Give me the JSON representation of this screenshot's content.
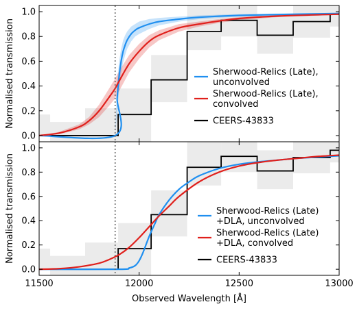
{
  "chart_data": [
    {
      "type": "line",
      "panel": "top",
      "ylabel": "Normalised transmission",
      "xlim": [
        11500,
        13000
      ],
      "ylim": [
        -0.05,
        1.05
      ],
      "xticks": [
        11500,
        12000,
        12500,
        13000
      ],
      "yticks": [
        0.0,
        0.2,
        0.4,
        0.6,
        0.8,
        1.0
      ],
      "ytick_labels": [
        "0.0",
        "0.2",
        "0.4",
        "0.6",
        "0.8",
        "1.0"
      ],
      "vline_x": 11880,
      "legend_position": "lower-right",
      "series": [
        {
          "name": "Sherwood-Relics (Late), unconvolved",
          "legend_lines": [
            "Sherwood-Relics (Late),",
            "unconvolved"
          ],
          "color": "#1f8ff0",
          "x": [
            11500,
            11880,
            11890,
            11900,
            11910,
            11920,
            11930,
            11940,
            11960,
            11980,
            12000,
            12050,
            12100,
            12200,
            12300,
            12500,
            12800,
            13000
          ],
          "y": [
            0.0,
            0.0,
            0.3,
            0.48,
            0.6,
            0.68,
            0.73,
            0.77,
            0.82,
            0.85,
            0.87,
            0.9,
            0.92,
            0.94,
            0.955,
            0.97,
            0.98,
            0.985
          ],
          "band_width": [
            0.0,
            0.0,
            0.12,
            0.12,
            0.1,
            0.09,
            0.08,
            0.07,
            0.06,
            0.05,
            0.05,
            0.04,
            0.03,
            0.02,
            0.015,
            0.01,
            0.008,
            0.005
          ]
        },
        {
          "name": "Sherwood-Relics (Late), convolved",
          "legend_lines": [
            "Sherwood-Relics (Late),",
            "convolved"
          ],
          "color": "#e0201c",
          "x": [
            11500,
            11600,
            11700,
            11750,
            11800,
            11850,
            11880,
            11900,
            11950,
            12000,
            12050,
            12100,
            12200,
            12300,
            12400,
            12500,
            12700,
            13000
          ],
          "y": [
            0.0,
            0.02,
            0.07,
            0.12,
            0.2,
            0.31,
            0.38,
            0.44,
            0.58,
            0.68,
            0.76,
            0.81,
            0.87,
            0.9,
            0.925,
            0.945,
            0.965,
            0.98
          ],
          "band_width": [
            0.0,
            0.01,
            0.02,
            0.03,
            0.05,
            0.07,
            0.08,
            0.08,
            0.07,
            0.06,
            0.05,
            0.04,
            0.03,
            0.02,
            0.015,
            0.012,
            0.008,
            0.005
          ]
        },
        {
          "name": "CEERS-43833",
          "legend_lines": [
            "CEERS-43833"
          ],
          "color": "#000000",
          "step": true,
          "bin_edges": [
            11500,
            11555,
            11730,
            11895,
            12060,
            12240,
            12410,
            12590,
            12770,
            12955,
            13000
          ],
          "values": [
            0.0,
            0.0,
            0.0,
            0.17,
            0.45,
            0.84,
            0.93,
            0.81,
            0.92,
            0.98
          ],
          "err_low": [
            0.0,
            -0.05,
            -0.05,
            -0.05,
            0.27,
            0.69,
            0.8,
            0.66,
            0.79,
            0.88
          ],
          "err_high": [
            0.17,
            0.11,
            0.22,
            0.38,
            0.65,
            1.05,
            1.05,
            0.98,
            1.05,
            1.05
          ]
        }
      ]
    },
    {
      "type": "line",
      "panel": "bottom",
      "ylabel": "Normalised transmission",
      "xlabel": "Observed Wavelength [Å]",
      "xlim": [
        11500,
        13000
      ],
      "ylim": [
        -0.05,
        1.05
      ],
      "xticks": [
        11500,
        12000,
        12500,
        13000
      ],
      "xtick_labels": [
        "11500",
        "12000",
        "12500",
        "13000"
      ],
      "yticks": [
        0.0,
        0.2,
        0.4,
        0.6,
        0.8,
        1.0
      ],
      "ytick_labels": [
        "0.0",
        "0.2",
        "0.4",
        "0.6",
        "0.8",
        "1.0"
      ],
      "vline_x": 11880,
      "legend_position": "lower-right",
      "series": [
        {
          "name": "Sherwood-Relics (Late) +DLA, unconvolved",
          "legend_lines": [
            "Sherwood-Relics (Late)",
            "+DLA, unconvolved"
          ],
          "color": "#1f8ff0",
          "x": [
            11500,
            11900,
            11950,
            11980,
            12000,
            12020,
            12050,
            12080,
            12100,
            12150,
            12200,
            12250,
            12300,
            12400,
            12500,
            12600,
            12700,
            12800,
            12900,
            13000
          ],
          "y": [
            0.0,
            0.0,
            0.01,
            0.03,
            0.07,
            0.14,
            0.27,
            0.38,
            0.45,
            0.57,
            0.66,
            0.72,
            0.77,
            0.83,
            0.865,
            0.885,
            0.9,
            0.915,
            0.925,
            0.935
          ]
        },
        {
          "name": "Sherwood-Relics (Late) +DLA, convolved",
          "legend_lines": [
            "Sherwood-Relics (Late)",
            "+DLA, convolved"
          ],
          "color": "#e0201c",
          "x": [
            11500,
            11600,
            11700,
            11800,
            11850,
            11900,
            11950,
            12000,
            12050,
            12100,
            12150,
            12200,
            12300,
            12400,
            12500,
            12600,
            12700,
            12800,
            12900,
            13000
          ],
          "y": [
            0.0,
            0.005,
            0.02,
            0.05,
            0.08,
            0.12,
            0.18,
            0.26,
            0.35,
            0.44,
            0.52,
            0.6,
            0.72,
            0.8,
            0.85,
            0.88,
            0.9,
            0.915,
            0.93,
            0.94
          ]
        },
        {
          "name": "CEERS-43833",
          "legend_lines": [
            "CEERS-43833"
          ],
          "color": "#000000",
          "step": true,
          "bin_edges": [
            11500,
            11555,
            11730,
            11895,
            12060,
            12240,
            12410,
            12590,
            12770,
            12955,
            13000
          ],
          "values": [
            0.0,
            0.0,
            0.0,
            0.17,
            0.45,
            0.84,
            0.93,
            0.81,
            0.92,
            0.98
          ],
          "err_low": [
            0.0,
            -0.05,
            -0.05,
            -0.05,
            0.27,
            0.69,
            0.8,
            0.66,
            0.79,
            0.88
          ],
          "err_high": [
            0.17,
            0.11,
            0.22,
            0.38,
            0.65,
            1.05,
            1.05,
            0.98,
            1.05,
            1.05
          ]
        }
      ]
    }
  ]
}
